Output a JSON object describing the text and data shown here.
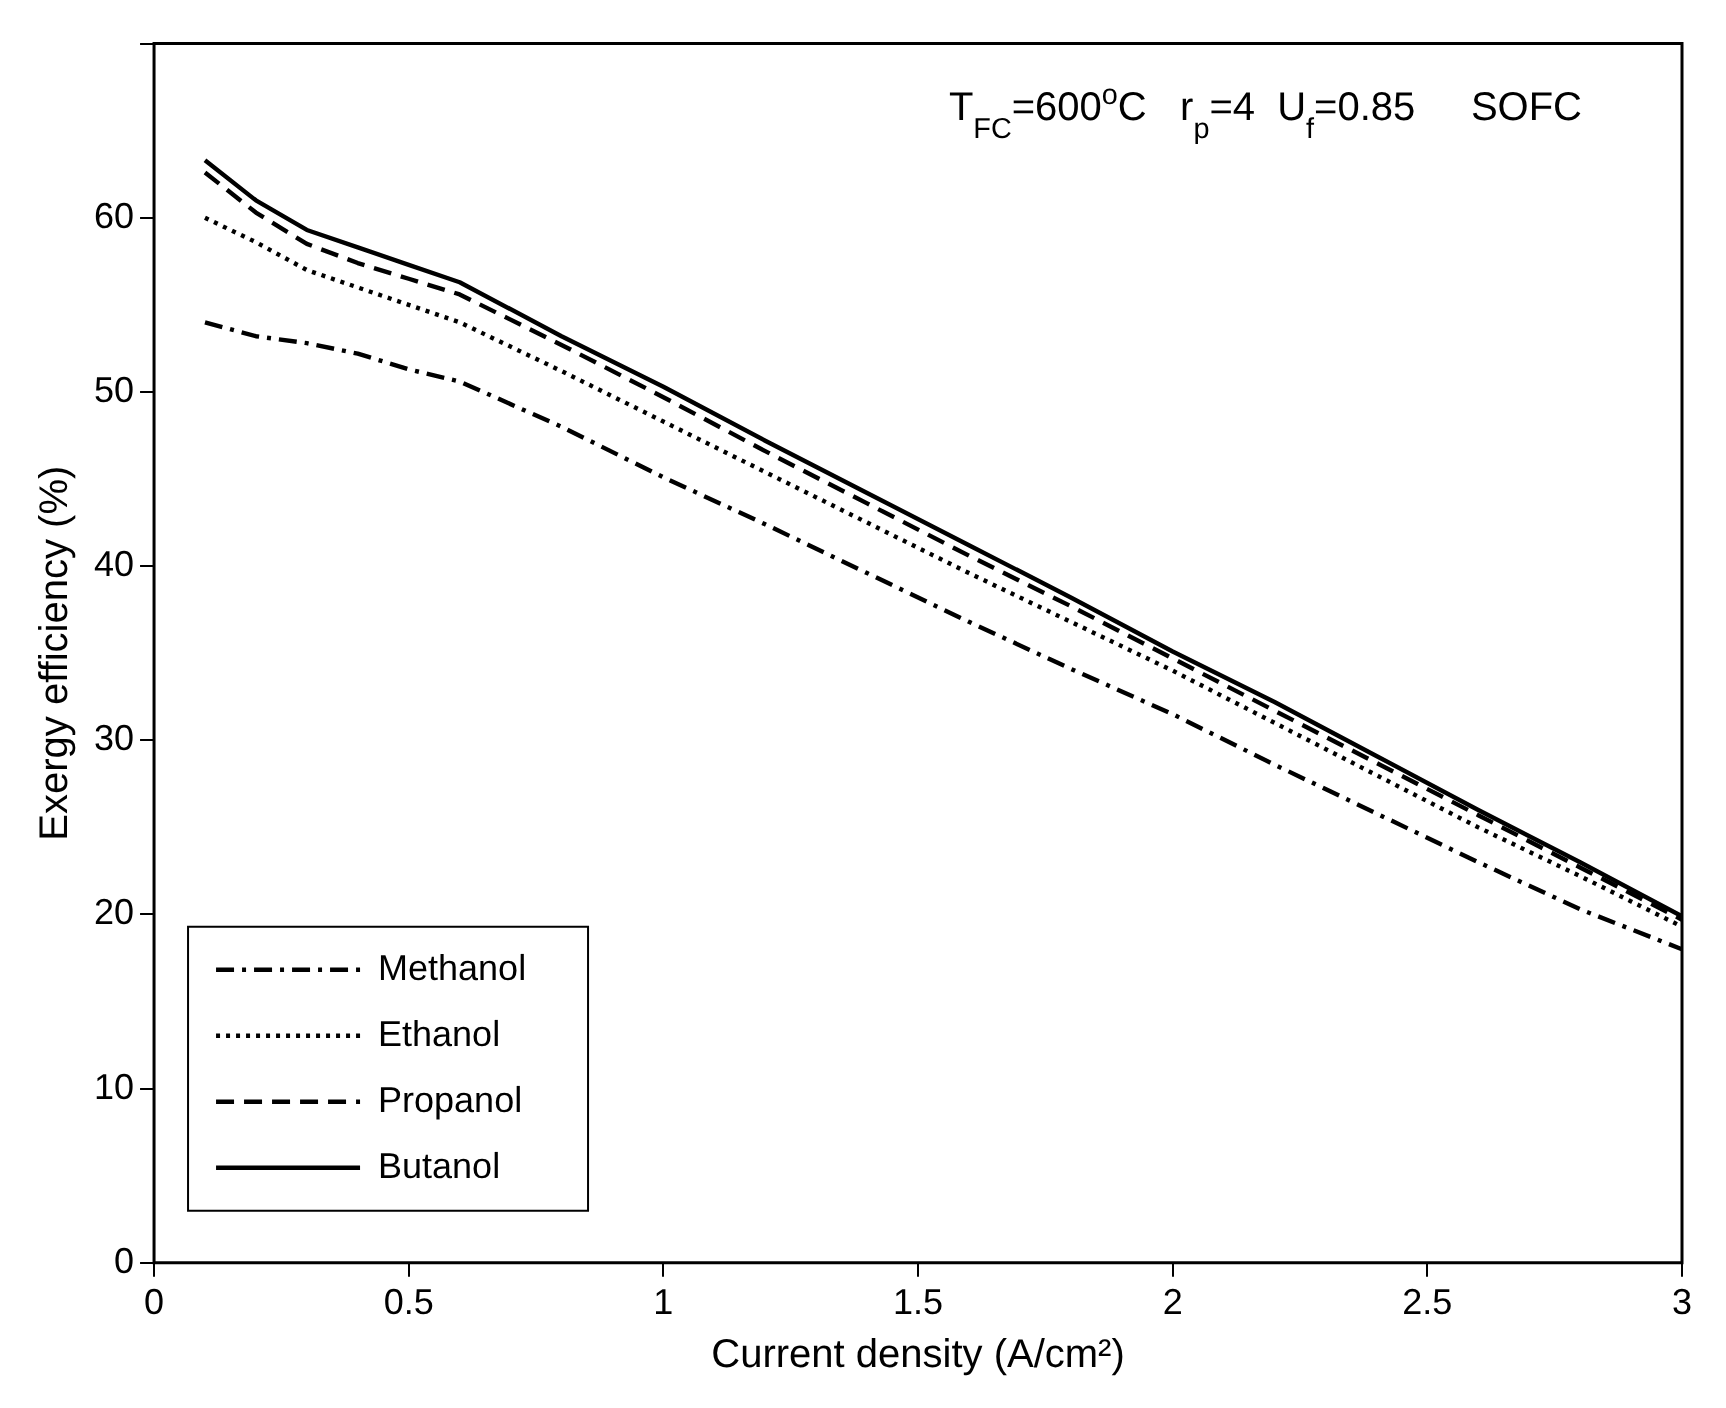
{
  "chart_data": {
    "type": "line",
    "xlabel": "Current density (A/cm²)",
    "ylabel": "Exergy efficiency (%)",
    "annotations": [
      "T$_{FC}$=600$^{o}$C   r$_{p}$=4  U$_{f}$=0.85     SOFC"
    ],
    "x": [
      0.1,
      0.2,
      0.3,
      0.4,
      0.5,
      0.6,
      0.8,
      1.0,
      1.2,
      1.4,
      1.6,
      1.8,
      2.0,
      2.2,
      2.4,
      2.6,
      2.8,
      3.0
    ],
    "series": [
      {
        "name": "Methanol",
        "color": "#000000",
        "line_style": "dashdot",
        "values": [
          54.0,
          53.2,
          52.8,
          52.2,
          51.3,
          50.6,
          48.0,
          45.1,
          42.4,
          39.6,
          36.8,
          34.1,
          31.5,
          28.6,
          25.8,
          23.0,
          20.3,
          18.0
        ]
      },
      {
        "name": "Ethanol",
        "color": "#000000",
        "line_style": "dotted",
        "values": [
          60.0,
          58.6,
          57.0,
          56.0,
          55.0,
          54.0,
          51.2,
          48.3,
          45.4,
          42.5,
          39.6,
          36.8,
          34.0,
          31.0,
          28.0,
          25.0,
          22.2,
          19.3
        ]
      },
      {
        "name": "Propanol",
        "color": "#000000",
        "line_style": "dashed",
        "values": [
          62.6,
          60.3,
          58.5,
          57.4,
          56.5,
          55.6,
          52.7,
          49.7,
          46.6,
          43.6,
          40.6,
          37.7,
          34.7,
          31.7,
          28.7,
          25.7,
          22.7,
          19.7
        ]
      },
      {
        "name": "Butanol",
        "color": "#000000",
        "line_style": "solid",
        "values": [
          63.3,
          61.0,
          59.3,
          58.3,
          57.3,
          56.3,
          53.2,
          50.3,
          47.2,
          44.2,
          41.2,
          38.2,
          35.1,
          32.2,
          29.1,
          26.0,
          23.0,
          19.9
        ]
      }
    ],
    "xlim": [
      0,
      3
    ],
    "xticks": [
      0,
      0.5,
      1,
      1.5,
      2,
      2.5,
      3
    ],
    "ylim": [
      0,
      70
    ],
    "yticks": [
      0,
      10,
      20,
      30,
      40,
      50,
      60,
      {
        "value": 70,
        "label": null
      }
    ],
    "grid": false,
    "legend": "bottom left",
    "marker": "none"
  }
}
